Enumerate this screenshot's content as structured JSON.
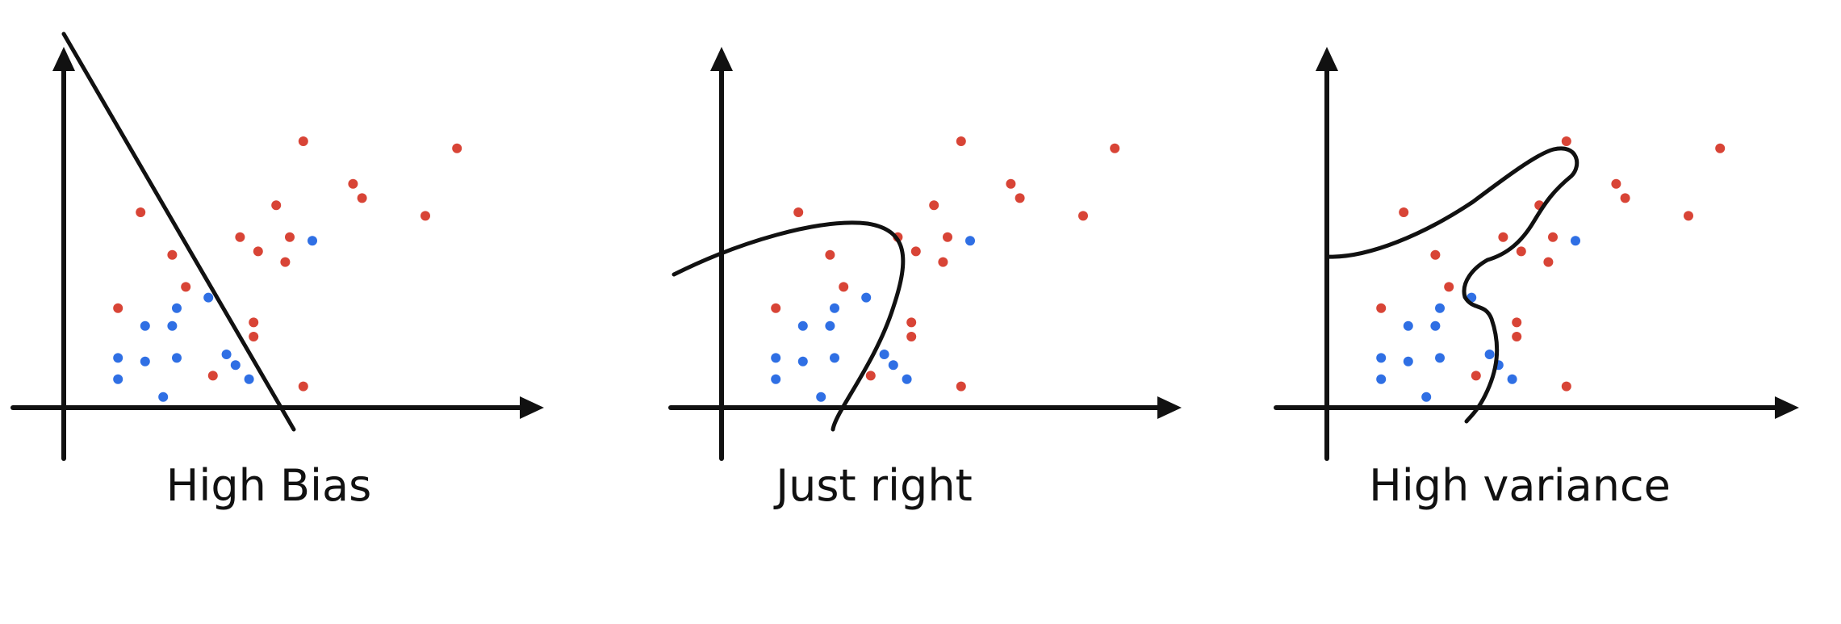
{
  "colors": {
    "ink": "#111111",
    "red_point": "#d84436",
    "blue_point": "#2f6fe4"
  },
  "panels": [
    {
      "label": "High Bias",
      "fit": "line",
      "points": {
        "red": [
          [
            53,
            75
          ],
          [
            87,
            73
          ],
          [
            17,
            55
          ],
          [
            24,
            43
          ],
          [
            12,
            28
          ],
          [
            47,
            57
          ],
          [
            50,
            48
          ],
          [
            39,
            48
          ],
          [
            43,
            44
          ],
          [
            27,
            34
          ],
          [
            64,
            63
          ],
          [
            66,
            59
          ],
          [
            80,
            54
          ],
          [
            49,
            41
          ],
          [
            42,
            20
          ],
          [
            33,
            9
          ],
          [
            53,
            6
          ],
          [
            42,
            24
          ]
        ],
        "blue": [
          [
            55,
            47
          ],
          [
            32,
            31
          ],
          [
            25,
            28
          ],
          [
            18,
            23
          ],
          [
            24,
            23
          ],
          [
            18,
            13
          ],
          [
            25,
            14
          ],
          [
            36,
            15
          ],
          [
            12,
            14
          ],
          [
            12,
            8
          ],
          [
            22,
            3
          ],
          [
            38,
            12
          ],
          [
            41,
            8
          ]
        ]
      }
    },
    {
      "label": "Just right",
      "fit": "closed-loop",
      "points": {
        "red": [
          [
            53,
            75
          ],
          [
            87,
            73
          ],
          [
            17,
            55
          ],
          [
            24,
            43
          ],
          [
            12,
            28
          ],
          [
            47,
            57
          ],
          [
            50,
            48
          ],
          [
            39,
            48
          ],
          [
            43,
            44
          ],
          [
            27,
            34
          ],
          [
            64,
            63
          ],
          [
            66,
            59
          ],
          [
            80,
            54
          ],
          [
            49,
            41
          ],
          [
            42,
            20
          ],
          [
            33,
            9
          ],
          [
            53,
            6
          ],
          [
            42,
            24
          ]
        ],
        "blue": [
          [
            55,
            47
          ],
          [
            32,
            31
          ],
          [
            25,
            28
          ],
          [
            18,
            23
          ],
          [
            24,
            23
          ],
          [
            18,
            13
          ],
          [
            25,
            14
          ],
          [
            36,
            15
          ],
          [
            12,
            14
          ],
          [
            12,
            8
          ],
          [
            22,
            3
          ],
          [
            38,
            12
          ],
          [
            41,
            8
          ]
        ]
      }
    },
    {
      "label": "High variance",
      "fit": "wiggly-curve",
      "points": {
        "red": [
          [
            53,
            75
          ],
          [
            87,
            73
          ],
          [
            17,
            55
          ],
          [
            24,
            43
          ],
          [
            12,
            28
          ],
          [
            47,
            57
          ],
          [
            50,
            48
          ],
          [
            39,
            48
          ],
          [
            43,
            44
          ],
          [
            27,
            34
          ],
          [
            64,
            63
          ],
          [
            66,
            59
          ],
          [
            80,
            54
          ],
          [
            49,
            41
          ],
          [
            42,
            20
          ],
          [
            33,
            9
          ],
          [
            53,
            6
          ],
          [
            42,
            24
          ]
        ],
        "blue": [
          [
            55,
            47
          ],
          [
            32,
            31
          ],
          [
            25,
            28
          ],
          [
            18,
            23
          ],
          [
            24,
            23
          ],
          [
            18,
            13
          ],
          [
            25,
            14
          ],
          [
            36,
            15
          ],
          [
            12,
            14
          ],
          [
            12,
            8
          ],
          [
            22,
            3
          ],
          [
            38,
            12
          ],
          [
            41,
            8
          ]
        ]
      }
    }
  ]
}
